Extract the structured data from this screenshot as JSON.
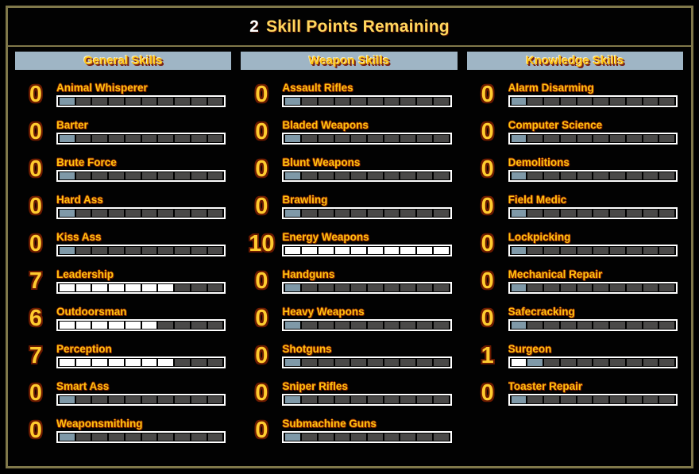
{
  "header": {
    "points": "2",
    "label": "Skill Points Remaining"
  },
  "bar": {
    "segments": 10
  },
  "colors": {
    "frame_border": "#80784a",
    "column_header_bg": "#9fb5c5",
    "gold_text": "#ffc30e",
    "title_gold": "#ffd75e",
    "points_white": "#ffffff",
    "segment_filled": "#ffffff",
    "segment_next": "#7f99a8",
    "segment_empty": "#4a4948"
  },
  "columns": [
    {
      "title": "General Skills",
      "skills": [
        {
          "name": "Animal Whisperer",
          "value": 0,
          "preview": true
        },
        {
          "name": "Barter",
          "value": 0,
          "preview": true
        },
        {
          "name": "Brute Force",
          "value": 0,
          "preview": true
        },
        {
          "name": "Hard Ass",
          "value": 0,
          "preview": true
        },
        {
          "name": "Kiss Ass",
          "value": 0,
          "preview": true
        },
        {
          "name": "Leadership",
          "value": 7,
          "preview": false
        },
        {
          "name": "Outdoorsman",
          "value": 6,
          "preview": false
        },
        {
          "name": "Perception",
          "value": 7,
          "preview": false
        },
        {
          "name": "Smart Ass",
          "value": 0,
          "preview": true
        },
        {
          "name": "Weaponsmithing",
          "value": 0,
          "preview": true
        }
      ]
    },
    {
      "title": "Weapon Skills",
      "skills": [
        {
          "name": "Assault Rifles",
          "value": 0,
          "preview": true
        },
        {
          "name": "Bladed Weapons",
          "value": 0,
          "preview": true
        },
        {
          "name": "Blunt Weapons",
          "value": 0,
          "preview": true
        },
        {
          "name": "Brawling",
          "value": 0,
          "preview": true
        },
        {
          "name": "Energy Weapons",
          "value": 10,
          "preview": false
        },
        {
          "name": "Handguns",
          "value": 0,
          "preview": true
        },
        {
          "name": "Heavy Weapons",
          "value": 0,
          "preview": true
        },
        {
          "name": "Shotguns",
          "value": 0,
          "preview": true
        },
        {
          "name": "Sniper Rifles",
          "value": 0,
          "preview": true
        },
        {
          "name": "Submachine Guns",
          "value": 0,
          "preview": true
        }
      ]
    },
    {
      "title": "Knowledge Skills",
      "skills": [
        {
          "name": "Alarm Disarming",
          "value": 0,
          "preview": true
        },
        {
          "name": "Computer Science",
          "value": 0,
          "preview": true
        },
        {
          "name": "Demolitions",
          "value": 0,
          "preview": true
        },
        {
          "name": "Field Medic",
          "value": 0,
          "preview": true
        },
        {
          "name": "Lockpicking",
          "value": 0,
          "preview": true
        },
        {
          "name": "Mechanical Repair",
          "value": 0,
          "preview": true
        },
        {
          "name": "Safecracking",
          "value": 0,
          "preview": true
        },
        {
          "name": "Surgeon",
          "value": 1,
          "preview": true
        },
        {
          "name": "Toaster Repair",
          "value": 0,
          "preview": true
        }
      ]
    }
  ]
}
